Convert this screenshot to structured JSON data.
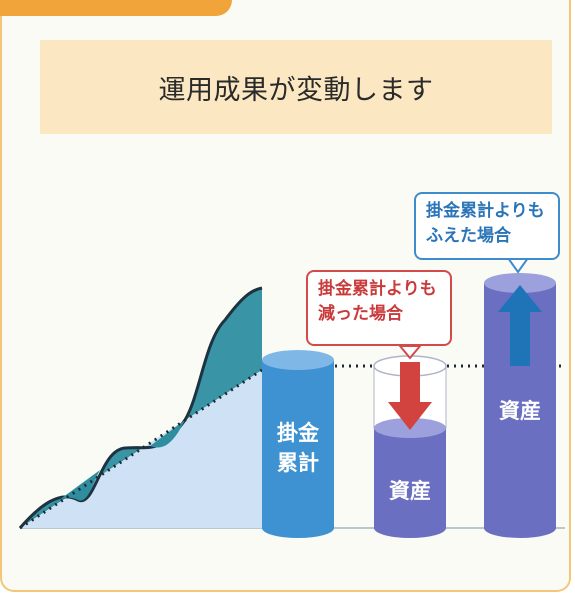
{
  "banner": {
    "title": "運用成果が変動します"
  },
  "bars": {
    "contributions_label_line1": "掛金",
    "contributions_label_line2": "累計",
    "asset_decreased_label": "資産",
    "asset_increased_label": "資産"
  },
  "callouts": {
    "decreased_line1": "掛金累計よりも",
    "decreased_line2": "減った場合",
    "increased_line1": "掛金累計よりも",
    "increased_line2": "ふえた場合"
  },
  "colors": {
    "panel_border": "#f3c77a",
    "tab": "#f0a43a",
    "banner": "#fbe8c2",
    "area": "#cfe1f5",
    "wave": "#2e8ea0",
    "cyl_blue": "#3f92d2",
    "cyl_purple": "#6a6fc2",
    "arrow_red": "#d2433f",
    "arrow_blue": "#1f73b7"
  }
}
